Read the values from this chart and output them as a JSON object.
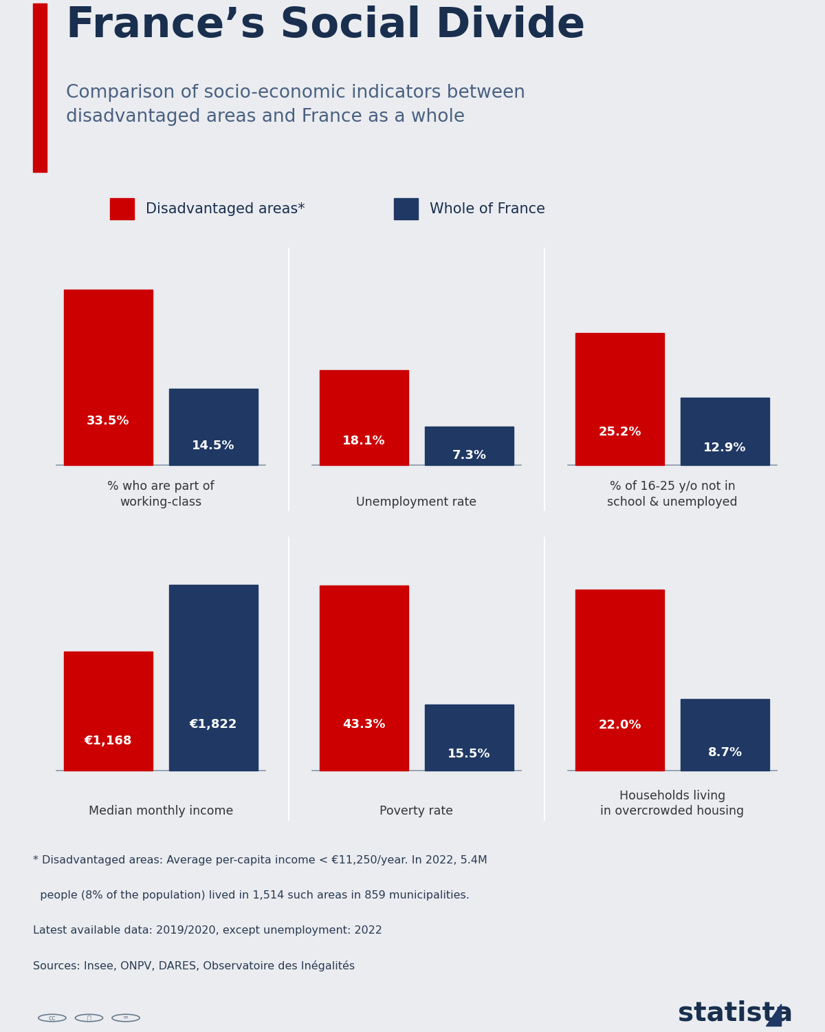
{
  "title": "France’s Social Divide",
  "subtitle": "Comparison of socio-economic indicators between\ndisadvantaged areas and France as a whole",
  "legend_labels": [
    "Disadvantaged areas*",
    "Whole of France"
  ],
  "legend_colors": [
    "#cc0000",
    "#1f3864"
  ],
  "bg_color": "#eaecf0",
  "panel_bg": "#dde2ea",
  "red_bar_color": "#cc0000",
  "blue_bar_color": "#1f3864",
  "title_color": "#1a2f4e",
  "subtitle_color": "#4a6080",
  "text_color": "#1a2f4e",
  "label_color": "#333333",
  "row1": {
    "categories": [
      "% who are part of\nworking-class",
      "Unemployment rate",
      "% of 16-25 y/o not in\nschool & unemployed"
    ],
    "red_values": [
      33.5,
      18.1,
      25.2
    ],
    "blue_values": [
      14.5,
      7.3,
      12.9
    ],
    "red_labels": [
      "33.5%",
      "18.1%",
      "25.2%"
    ],
    "blue_labels": [
      "14.5%",
      "7.3%",
      "12.9%"
    ],
    "max_val": 38
  },
  "row2": {
    "categories": [
      "Median monthly income",
      "Poverty rate",
      "Households living\nin overcrowded housing"
    ],
    "red_values": [
      1168,
      43.3,
      22.0
    ],
    "blue_values": [
      1822,
      15.5,
      8.7
    ],
    "red_labels": [
      "€1,168",
      "43.3%",
      "22.0%"
    ],
    "blue_labels": [
      "€1,822",
      "15.5%",
      "8.7%"
    ],
    "max_vals": [
      2100,
      50,
      26
    ]
  },
  "footnote_lines": [
    "* Disadvantaged areas: Average per-capita income < €11,250/year. In 2022, 5.4M",
    "  people (8% of the population) lived in 1,514 such areas in 859 municipalities.",
    "Latest available data: 2019/2020, except unemployment: 2022",
    "Sources: Insee, ONPV, DARES, Observatoire des Inégalités"
  ],
  "red_accent": "#cc0000",
  "divider_color": "#c8cdd6",
  "baseline_color": "#8899aa"
}
